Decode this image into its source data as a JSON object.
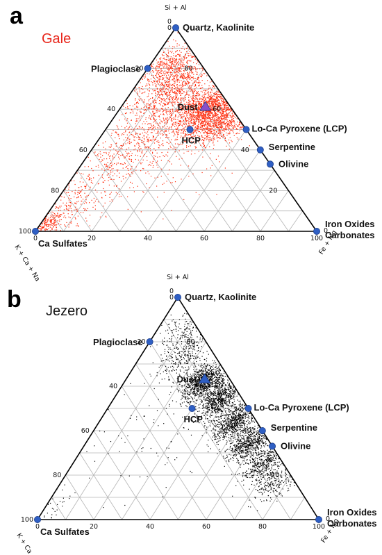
{
  "panels": [
    {
      "letter": "a",
      "title": "Gale",
      "title_color": "#e8261b",
      "point_color": "#ff2a0a",
      "apex_top": "Si + Al",
      "apex_left": "K + Ca + Na",
      "apex_right": "Fe + Mg",
      "minerals": {
        "quartz": "Quartz, Kaolinite",
        "plagioclase": "Plagioclase",
        "dust": "Dust",
        "lcp": "Lo-Ca Pyroxene (LCP)",
        "serpentine": "Serpentine",
        "olivine": "Olivine",
        "hcp": "HCP",
        "iron": "Iron Oxides",
        "carbonates": "Carbonates",
        "casulfates": "Ca Sulfates"
      }
    },
    {
      "letter": "b",
      "title": "Jezero",
      "title_color": "#111111",
      "point_color": "#000000",
      "apex_top": "Si + Al",
      "apex_left": "K + Ca + Na",
      "apex_right": "Fe + Mg",
      "minerals": {
        "quartz": "Quartz, Kaolinite",
        "plagioclase": "Plagioclase",
        "dust": "Dust",
        "lcp": "Lo-Ca Pyroxene (LCP)",
        "serpentine": "Serpentine",
        "olivine": "Olivine",
        "hcp": "HCP",
        "iron": "Iron Oxides",
        "carbonates": "Carbonates",
        "casulfates": "Ca Sulfates"
      }
    }
  ],
  "chart_data": [
    {
      "type": "scatter",
      "subtype": "ternary",
      "title": "Gale",
      "axes": {
        "top": "Si + Al",
        "left": "K + Ca + Na",
        "right": "Fe + Mg"
      },
      "ticks": [
        0,
        20,
        40,
        60,
        80,
        100
      ],
      "grid": true,
      "end_members": [
        {
          "name": "Quartz, Kaolinite",
          "si_al": 100,
          "fe_mg": 0,
          "k_ca_na": 0
        },
        {
          "name": "Plagioclase",
          "si_al": 80,
          "fe_mg": 0,
          "k_ca_na": 20
        },
        {
          "name": "Lo-Ca Pyroxene (LCP)",
          "si_al": 50,
          "fe_mg": 50,
          "k_ca_na": 0
        },
        {
          "name": "Serpentine",
          "si_al": 40,
          "fe_mg": 60,
          "k_ca_na": 0
        },
        {
          "name": "Olivine",
          "si_al": 33,
          "fe_mg": 67,
          "k_ca_na": 0
        },
        {
          "name": "HCP",
          "si_al": 50,
          "fe_mg": 30,
          "k_ca_na": 20
        },
        {
          "name": "Iron Oxides / Carbonates",
          "si_al": 0,
          "fe_mg": 100,
          "k_ca_na": 0
        },
        {
          "name": "Ca Sulfates",
          "si_al": 0,
          "fe_mg": 0,
          "k_ca_na": 100
        }
      ],
      "dust": {
        "name": "Dust",
        "si_al": 61,
        "fe_mg": 30,
        "k_ca_na": 9
      },
      "point_clusters": [
        {
          "center": {
            "si_al": 60,
            "fe_mg": 32
          },
          "spread": 6,
          "count": 1400
        },
        {
          "center": {
            "si_al": 72,
            "fe_mg": 14
          },
          "spread": 7,
          "count": 700
        },
        {
          "center": {
            "si_al": 82,
            "fe_mg": 6
          },
          "spread": 6,
          "count": 400
        },
        {
          "center": {
            "si_al": 52,
            "fe_mg": 40
          },
          "spread": 5,
          "count": 500
        },
        {
          "center": {
            "si_al": 55,
            "fe_mg": 20
          },
          "spread": 8,
          "count": 400
        },
        {
          "center": {
            "si_al": 40,
            "fe_mg": 12
          },
          "spread": 10,
          "count": 350
        },
        {
          "center": {
            "si_al": 12,
            "fe_mg": 4
          },
          "spread": 8,
          "count": 300
        },
        {
          "center": {
            "si_al": 3,
            "fe_mg": 2
          },
          "spread": 3,
          "count": 200
        },
        {
          "center": {
            "si_al": 50,
            "fe_mg": 25
          },
          "spread": 20,
          "count": 500
        }
      ]
    },
    {
      "type": "scatter",
      "subtype": "ternary",
      "title": "Jezero",
      "axes": {
        "top": "Si + Al",
        "left": "K + Ca + Na",
        "right": "Fe + Mg"
      },
      "ticks": [
        0,
        20,
        40,
        60,
        80,
        100
      ],
      "grid": true,
      "end_members": [
        {
          "name": "Quartz, Kaolinite",
          "si_al": 100,
          "fe_mg": 0,
          "k_ca_na": 0
        },
        {
          "name": "Plagioclase",
          "si_al": 80,
          "fe_mg": 0,
          "k_ca_na": 20
        },
        {
          "name": "Lo-Ca Pyroxene (LCP)",
          "si_al": 50,
          "fe_mg": 50,
          "k_ca_na": 0
        },
        {
          "name": "Serpentine",
          "si_al": 40,
          "fe_mg": 60,
          "k_ca_na": 0
        },
        {
          "name": "Olivine",
          "si_al": 33,
          "fe_mg": 67,
          "k_ca_na": 0
        },
        {
          "name": "HCP",
          "si_al": 50,
          "fe_mg": 30,
          "k_ca_na": 20
        },
        {
          "name": "Iron Oxides / Carbonates",
          "si_al": 0,
          "fe_mg": 100,
          "k_ca_na": 0
        },
        {
          "name": "Ca Sulfates",
          "si_al": 0,
          "fe_mg": 0,
          "k_ca_na": 100
        }
      ],
      "dust": {
        "name": "Dust",
        "si_al": 63,
        "fe_mg": 28,
        "k_ca_na": 9
      },
      "point_clusters": [
        {
          "center": {
            "si_al": 62,
            "fe_mg": 28
          },
          "spread": 4,
          "count": 900
        },
        {
          "center": {
            "si_al": 54,
            "fe_mg": 38
          },
          "spread": 4,
          "count": 700
        },
        {
          "center": {
            "si_al": 44,
            "fe_mg": 48
          },
          "spread": 4,
          "count": 700
        },
        {
          "center": {
            "si_al": 34,
            "fe_mg": 58
          },
          "spread": 4,
          "count": 600
        },
        {
          "center": {
            "si_al": 25,
            "fe_mg": 68
          },
          "spread": 4,
          "count": 400
        },
        {
          "center": {
            "si_al": 16,
            "fe_mg": 76
          },
          "spread": 4,
          "count": 200
        },
        {
          "center": {
            "si_al": 84,
            "fe_mg": 10
          },
          "spread": 5,
          "count": 200
        },
        {
          "center": {
            "si_al": 72,
            "fe_mg": 16
          },
          "spread": 5,
          "count": 250
        },
        {
          "center": {
            "si_al": 45,
            "fe_mg": 25
          },
          "spread": 18,
          "count": 120
        },
        {
          "center": {
            "si_al": 6,
            "fe_mg": 2
          },
          "spread": 4,
          "count": 40
        }
      ]
    }
  ]
}
